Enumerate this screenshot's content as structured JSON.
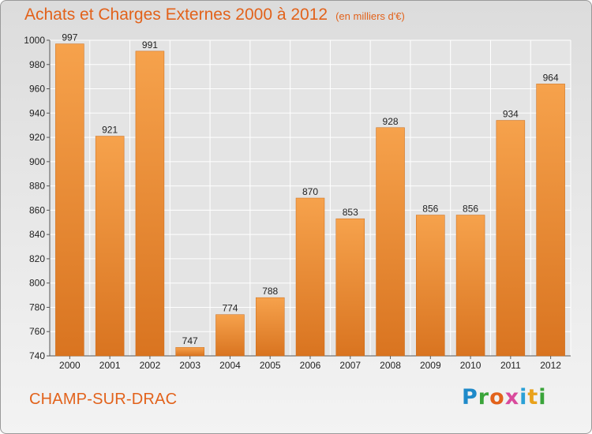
{
  "title": "Achats et Charges Externes 2000 à 2012",
  "unit": "(en milliers d'€)",
  "commune": "CHAMP-SUR-DRAC",
  "logo": "Proxiti",
  "colors": {
    "bar": "#f0973c",
    "bar_dark": "#dc7a22",
    "title": "#e2621b",
    "grid": "#ffffff",
    "axis_text": "#222222"
  },
  "chart_data": {
    "type": "bar",
    "title": "Achats et Charges Externes 2000 à 2012",
    "subtitle": "(en milliers d'€)",
    "xlabel": "",
    "ylabel": "",
    "categories": [
      "2000",
      "2001",
      "2002",
      "2003",
      "2004",
      "2005",
      "2006",
      "2007",
      "2008",
      "2009",
      "2010",
      "2011",
      "2012"
    ],
    "values": [
      997,
      921,
      991,
      747,
      774,
      788,
      870,
      853,
      928,
      856,
      856,
      934,
      964
    ],
    "data_labels": [
      "997",
      "921",
      "991",
      "747",
      "774",
      "788",
      "870",
      "853",
      "928",
      "856",
      "856",
      "934",
      "964"
    ],
    "ylim": [
      740,
      1000
    ],
    "yticks": [
      740,
      760,
      780,
      800,
      820,
      840,
      860,
      880,
      900,
      920,
      940,
      960,
      980,
      1000
    ],
    "grid": true,
    "legend": "none"
  }
}
